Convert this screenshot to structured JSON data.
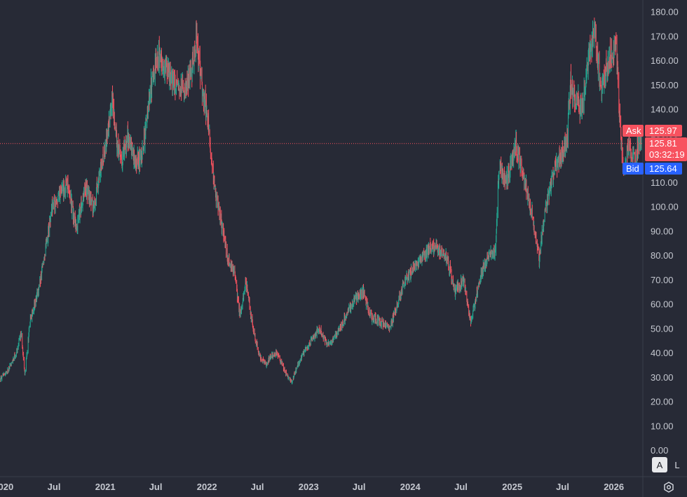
{
  "chart_data": {
    "type": "candlestick",
    "x_range": [
      "2019-12-20",
      "2026-04-15"
    ],
    "ylim": [
      0,
      180
    ],
    "y_ticks": [
      "0.00",
      "10.00",
      "20.00",
      "30.00",
      "40.00",
      "50.00",
      "60.00",
      "70.00",
      "80.00",
      "90.00",
      "100.00",
      "110.00",
      "120.00",
      "130.00",
      "140.00",
      "150.00",
      "160.00",
      "170.00",
      "180.00"
    ],
    "x_ticks": [
      {
        "date": "2020-01-01",
        "label": "2020"
      },
      {
        "date": "2020-07-01",
        "label": "Jul"
      },
      {
        "date": "2021-01-01",
        "label": "2021"
      },
      {
        "date": "2021-07-01",
        "label": "Jul"
      },
      {
        "date": "2022-01-01",
        "label": "2022"
      },
      {
        "date": "2022-07-01",
        "label": "Jul"
      },
      {
        "date": "2023-01-01",
        "label": "2023"
      },
      {
        "date": "2023-07-01",
        "label": "Jul"
      },
      {
        "date": "2024-01-01",
        "label": "2024"
      },
      {
        "date": "2024-07-01",
        "label": "Jul"
      },
      {
        "date": "2025-01-01",
        "label": "2025"
      },
      {
        "date": "2025-07-01",
        "label": "Jul"
      },
      {
        "date": "2026-01-01",
        "label": "2026"
      }
    ],
    "price_path": [
      [
        "2019-12-20",
        29
      ],
      [
        "2020-01-20",
        33
      ],
      [
        "2020-02-20",
        41
      ],
      [
        "2020-03-05",
        48
      ],
      [
        "2020-03-18",
        31
      ],
      [
        "2020-04-05",
        52
      ],
      [
        "2020-05-10",
        68
      ],
      [
        "2020-06-01",
        83
      ],
      [
        "2020-06-25",
        100
      ],
      [
        "2020-07-20",
        104
      ],
      [
        "2020-08-20",
        109
      ],
      [
        "2020-09-20",
        90
      ],
      [
        "2020-10-20",
        108
      ],
      [
        "2020-11-20",
        100
      ],
      [
        "2020-12-20",
        118
      ],
      [
        "2021-01-10",
        130
      ],
      [
        "2021-01-25",
        145
      ],
      [
        "2021-02-10",
        128
      ],
      [
        "2021-02-28",
        118
      ],
      [
        "2021-03-20",
        128
      ],
      [
        "2021-04-20",
        118
      ],
      [
        "2021-05-15",
        122
      ],
      [
        "2021-06-15",
        150
      ],
      [
        "2021-07-10",
        162
      ],
      [
        "2021-08-10",
        155
      ],
      [
        "2021-09-10",
        150
      ],
      [
        "2021-10-15",
        148
      ],
      [
        "2021-11-10",
        158
      ],
      [
        "2021-11-25",
        170
      ],
      [
        "2021-12-15",
        148
      ],
      [
        "2022-01-05",
        135
      ],
      [
        "2022-01-31",
        105
      ],
      [
        "2022-02-20",
        95
      ],
      [
        "2022-03-15",
        80
      ],
      [
        "2022-04-10",
        72
      ],
      [
        "2022-04-30",
        55
      ],
      [
        "2022-05-20",
        70
      ],
      [
        "2022-06-15",
        50
      ],
      [
        "2022-07-10",
        38
      ],
      [
        "2022-08-01",
        35
      ],
      [
        "2022-08-15",
        38
      ],
      [
        "2022-09-10",
        40
      ],
      [
        "2022-10-10",
        32
      ],
      [
        "2022-11-01",
        28
      ],
      [
        "2022-11-20",
        34
      ],
      [
        "2022-12-15",
        40
      ],
      [
        "2023-01-10",
        45
      ],
      [
        "2023-02-10",
        50
      ],
      [
        "2023-03-10",
        43
      ],
      [
        "2023-04-10",
        47
      ],
      [
        "2023-05-15",
        55
      ],
      [
        "2023-06-15",
        62
      ],
      [
        "2023-07-15",
        65
      ],
      [
        "2023-08-10",
        55
      ],
      [
        "2023-09-10",
        53
      ],
      [
        "2023-10-20",
        50
      ],
      [
        "2023-11-15",
        60
      ],
      [
        "2023-12-15",
        70
      ],
      [
        "2024-01-20",
        75
      ],
      [
        "2024-02-20",
        80
      ],
      [
        "2024-03-15",
        84
      ],
      [
        "2024-04-15",
        82
      ],
      [
        "2024-05-15",
        78
      ],
      [
        "2024-06-10",
        65
      ],
      [
        "2024-07-10",
        70
      ],
      [
        "2024-08-05",
        52
      ],
      [
        "2024-09-10",
        72
      ],
      [
        "2024-10-10",
        80
      ],
      [
        "2024-11-01",
        82
      ],
      [
        "2024-11-15",
        115
      ],
      [
        "2024-12-15",
        112
      ],
      [
        "2025-01-15",
        125
      ],
      [
        "2025-02-15",
        110
      ],
      [
        "2025-03-10",
        100
      ],
      [
        "2025-04-08",
        78
      ],
      [
        "2025-04-25",
        95
      ],
      [
        "2025-05-20",
        110
      ],
      [
        "2025-06-20",
        120
      ],
      [
        "2025-07-15",
        125
      ],
      [
        "2025-07-30",
        150
      ],
      [
        "2025-08-15",
        145
      ],
      [
        "2025-09-10",
        140
      ],
      [
        "2025-10-05",
        165
      ],
      [
        "2025-10-25",
        170
      ],
      [
        "2025-11-15",
        148
      ],
      [
        "2025-12-10",
        160
      ],
      [
        "2026-01-10",
        165
      ],
      [
        "2026-01-20",
        138
      ],
      [
        "2026-02-05",
        115
      ],
      [
        "2026-02-25",
        125
      ],
      [
        "2026-03-15",
        118
      ],
      [
        "2026-04-01",
        127
      ],
      [
        "2026-04-10",
        125.81
      ]
    ],
    "last_price_line": 125.81
  },
  "price_tags": {
    "ask_label": "Ask",
    "ask_value": "125.97",
    "last_value": "125.81",
    "countdown": "03:32:19",
    "bid_label": "Bid",
    "bid_value": "125.64"
  },
  "colors": {
    "background": "#272a36",
    "up": "#22ab94",
    "down": "#f7525f",
    "ask": "#f7525f",
    "bid": "#2962ff",
    "price_line": "#f7525f"
  },
  "buttons": {
    "auto_label": "A",
    "log_label": "L"
  },
  "icons": {
    "settings": "settings-icon"
  }
}
